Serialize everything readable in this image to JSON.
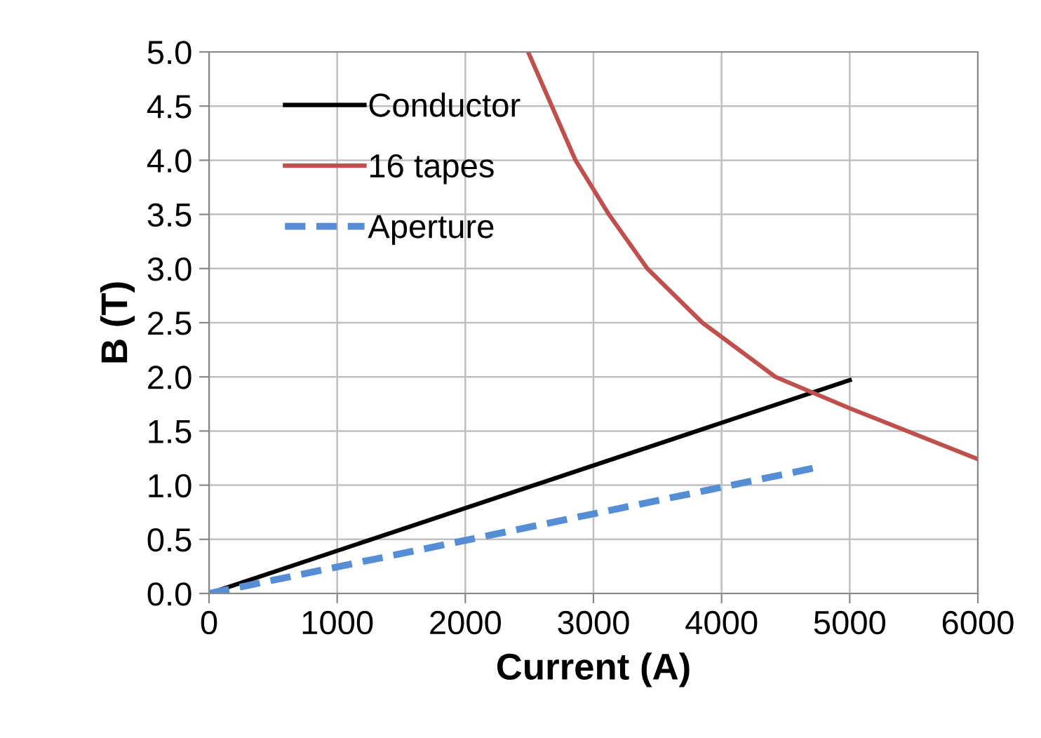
{
  "chart_data": {
    "type": "line",
    "xlabel": "Current (A)",
    "ylabel": "B (T)",
    "xlim": [
      0,
      6000
    ],
    "xticks": [
      0,
      1000,
      2000,
      3000,
      4000,
      5000,
      6000
    ],
    "ylim": [
      0,
      5.0
    ],
    "yticks": [
      {
        "value": 0,
        "label": "0.0"
      },
      {
        "value": 0.5,
        "label": "0.5"
      },
      {
        "value": 1.0,
        "label": "1.0"
      },
      {
        "value": 1.5,
        "label": "1.5"
      },
      {
        "value": 2.0,
        "label": "2.0"
      },
      {
        "value": 2.5,
        "label": "2.5"
      },
      {
        "value": 3.0,
        "label": "3.0"
      },
      {
        "value": 3.5,
        "label": "3.5"
      },
      {
        "value": 4.0,
        "label": "4.0"
      },
      {
        "value": 4.5,
        "label": "4.5"
      },
      {
        "value": 5.0,
        "label": "5.0"
      }
    ],
    "grid": true,
    "legend": "top left",
    "series": [
      {
        "name": "Conductor",
        "color": "#000000",
        "line_style": "solid",
        "x": [
          0,
          5000
        ],
        "values": [
          0,
          1.97
        ]
      },
      {
        "name": "16 tapes",
        "color": "#c0504d",
        "line_style": "solid",
        "x": [
          2490,
          2860,
          3120,
          3420,
          3850,
          4420,
          5000,
          6000
        ],
        "values": [
          5.0,
          4.0,
          3.5,
          3.0,
          2.5,
          2.0,
          1.71,
          1.24
        ]
      },
      {
        "name": "Aperture",
        "color": "#558ed5",
        "line_style": "dashed",
        "x": [
          0,
          4730
        ],
        "values": [
          0,
          1.16
        ]
      }
    ]
  }
}
